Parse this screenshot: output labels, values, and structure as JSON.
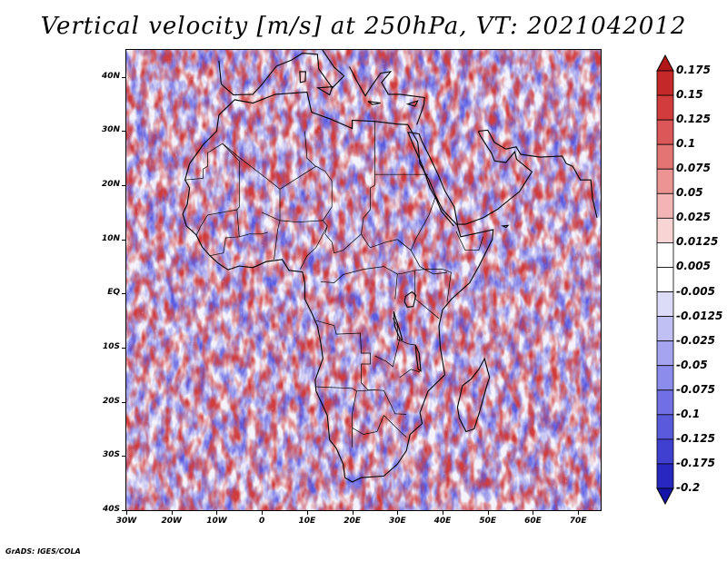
{
  "title": "Vertical velocity [m/s] at 250hPa, VT: 2021042012",
  "footer": "GrADS: IGES/COLA",
  "map": {
    "lat_labels": [
      "40N",
      "30N",
      "20N",
      "10N",
      "EQ",
      "10S",
      "20S",
      "30S",
      "40S"
    ],
    "lon_labels": [
      "30W",
      "20W",
      "10W",
      "0",
      "10E",
      "20E",
      "30E",
      "40E",
      "50E",
      "60E",
      "70E"
    ],
    "lat_range": [
      -40,
      45
    ],
    "lon_range": [
      -30,
      75
    ],
    "positive_color": "#d03a3a",
    "negative_color": "#5a5ae0"
  },
  "colorbar": {
    "labels": [
      "0.175",
      "0.15",
      "0.125",
      "0.1",
      "0.075",
      "0.05",
      "0.025",
      "0.0125",
      "0.005",
      "-0.005",
      "-0.0125",
      "-0.025",
      "-0.05",
      "-0.075",
      "-0.1",
      "-0.125",
      "-0.175",
      "-0.2"
    ],
    "colors": [
      "#b01818",
      "#c42828",
      "#d23c3c",
      "#dc5858",
      "#e47474",
      "#ec9494",
      "#f2b4b4",
      "#f8d4d4",
      "#ffffff",
      "#ffffff",
      "#dcdcf8",
      "#c0c0f4",
      "#a4a4f0",
      "#8c8cec",
      "#7070e4",
      "#5a5adc",
      "#4040d0",
      "#2828c0",
      "#1414a8"
    ]
  }
}
